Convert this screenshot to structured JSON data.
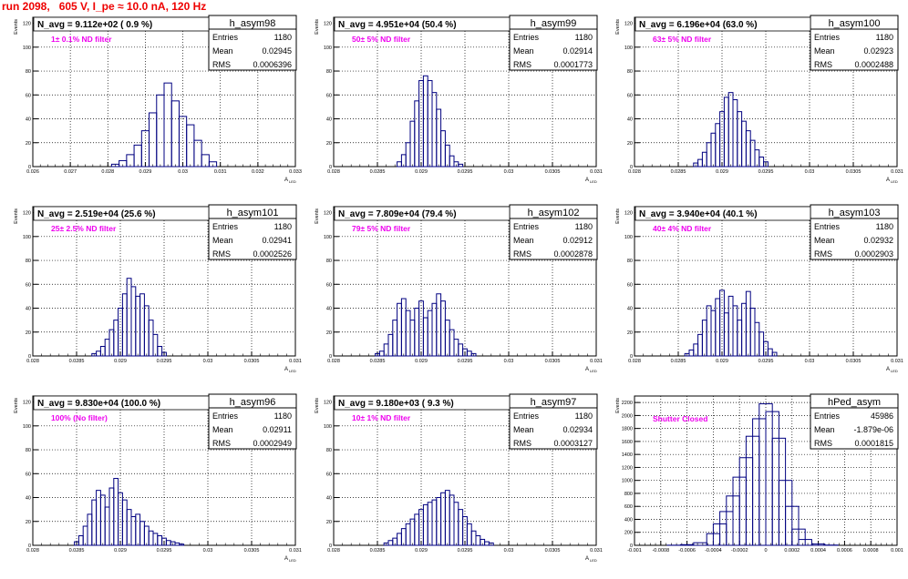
{
  "title": "run 2098,   605 V, I_pe ≈ 10.0 nA, 120 Hz",
  "colors": {
    "title": "#ee0000",
    "histogram": "#000080",
    "annotation": "#ee00ee",
    "grid": "#000000"
  },
  "stats_labels": {
    "entries": "Entries",
    "mean": "Mean",
    "rms": "RMS"
  },
  "panels": [
    {
      "name": "h_asym98",
      "header": "N_avg = 9.112e+02 ( 0.9 %)",
      "annotation": "1± 0.1% ND filter",
      "stats": {
        "entries": "1180",
        "mean": "0.02945",
        "rms": "0.0006396"
      },
      "ylabel": "Events",
      "xlabel": "A",
      "xlabel_sub": "LED",
      "xticks": [
        "0.026",
        "0.027",
        "0.028",
        "0.029",
        "0.03",
        "0.031",
        "0.032",
        "0.033"
      ],
      "yticks": [
        "0",
        "20",
        "40",
        "60",
        "80",
        "100",
        "120"
      ]
    },
    {
      "name": "h_asym99",
      "header": "N_avg = 4.951e+04 (50.4 %)",
      "annotation": "50± 5% ND filter",
      "stats": {
        "entries": "1180",
        "mean": "0.02914",
        "rms": "0.0001773"
      },
      "ylabel": "Events",
      "xlabel": "A",
      "xlabel_sub": "LED",
      "xticks": [
        "0.028",
        "0.0285",
        "0.029",
        "0.0295",
        "0.03",
        "0.0305",
        "0.031"
      ],
      "yticks": [
        "0",
        "20",
        "40",
        "60",
        "80",
        "100",
        "120"
      ]
    },
    {
      "name": "h_asym100",
      "header": "N_avg = 6.196e+04 (63.0 %)",
      "annotation": "63± 5% ND filter",
      "stats": {
        "entries": "1180",
        "mean": "0.02923",
        "rms": "0.0002488"
      },
      "ylabel": "Events",
      "xlabel": "A",
      "xlabel_sub": "LED",
      "xticks": [
        "0.028",
        "0.0285",
        "0.029",
        "0.0295",
        "0.03",
        "0.0305",
        "0.031"
      ],
      "yticks": [
        "0",
        "20",
        "40",
        "60",
        "80",
        "100",
        "120"
      ]
    },
    {
      "name": "h_asym101",
      "header": "N_avg = 2.519e+04 (25.6 %)",
      "annotation": "25± 2.5% ND filter",
      "stats": {
        "entries": "1180",
        "mean": "0.02941",
        "rms": "0.0002526"
      },
      "ylabel": "Events",
      "xlabel": "A",
      "xlabel_sub": "LED",
      "xticks": [
        "0.028",
        "0.0285",
        "0.029",
        "0.0295",
        "0.03",
        "0.0305",
        "0.031"
      ],
      "yticks": [
        "0",
        "20",
        "40",
        "60",
        "80",
        "100",
        "120"
      ]
    },
    {
      "name": "h_asym102",
      "header": "N_avg = 7.809e+04 (79.4 %)",
      "annotation": "79± 5% ND filter",
      "stats": {
        "entries": "1180",
        "mean": "0.02912",
        "rms": "0.0002878"
      },
      "ylabel": "Events",
      "xlabel": "A",
      "xlabel_sub": "LED",
      "xticks": [
        "0.028",
        "0.0285",
        "0.029",
        "0.0295",
        "0.03",
        "0.0305",
        "0.031"
      ],
      "yticks": [
        "0",
        "20",
        "40",
        "60",
        "80",
        "100",
        "120"
      ]
    },
    {
      "name": "h_asym103",
      "header": "N_avg = 3.940e+04 (40.1 %)",
      "annotation": "40± 4% ND filter",
      "stats": {
        "entries": "1180",
        "mean": "0.02932",
        "rms": "0.0002903"
      },
      "ylabel": "Events",
      "xlabel": "A",
      "xlabel_sub": "LED",
      "xticks": [
        "0.028",
        "0.0285",
        "0.029",
        "0.0295",
        "0.03",
        "0.0305",
        "0.031"
      ],
      "yticks": [
        "0",
        "20",
        "40",
        "60",
        "80",
        "100",
        "120"
      ]
    },
    {
      "name": "h_asym96",
      "header": "N_avg = 9.830e+04 (100.0 %)",
      "annotation": "100% (No filter)",
      "stats": {
        "entries": "1180",
        "mean": "0.02911",
        "rms": "0.0002949"
      },
      "ylabel": "Events",
      "xlabel": "A",
      "xlabel_sub": "LED",
      "xticks": [
        "0.028",
        "0.0285",
        "0.029",
        "0.0295",
        "0.03",
        "0.0305",
        "0.031"
      ],
      "yticks": [
        "0",
        "20",
        "40",
        "60",
        "80",
        "100",
        "120"
      ]
    },
    {
      "name": "h_asym97",
      "header": "N_avg = 9.180e+03 ( 9.3 %)",
      "annotation": "10± 1% ND filter",
      "stats": {
        "entries": "1180",
        "mean": "0.02934",
        "rms": "0.0003127"
      },
      "ylabel": "Events",
      "xlabel": "A",
      "xlabel_sub": "LED",
      "xticks": [
        "0.028",
        "0.0285",
        "0.029",
        "0.0295",
        "0.03",
        "0.0305",
        "0.031"
      ],
      "yticks": [
        "0",
        "20",
        "40",
        "60",
        "80",
        "100",
        "120"
      ]
    },
    {
      "name": "hPed_asym",
      "header": "",
      "annotation": "Shutter Closed",
      "stats": {
        "entries": "45986",
        "mean": "-1.879e-06",
        "rms": "0.0001815"
      },
      "ylabel": "Events",
      "xlabel": "",
      "xlabel_sub": "",
      "xticks": [
        "-0.001",
        "-0.0008",
        "-0.0006",
        "-0.0004",
        "-0.0002",
        "0",
        "0.0002",
        "0.0004",
        "0.0006",
        "0.0008",
        "0.001"
      ],
      "yticks": [
        "0",
        "200",
        "400",
        "600",
        "800",
        "1000",
        "1200",
        "1400",
        "1600",
        "1800",
        "2000",
        "2200"
      ]
    }
  ],
  "chart_data": [
    {
      "type": "bar",
      "name": "h_asym98",
      "xlim": [
        0.026,
        0.033
      ],
      "ylim": [
        0,
        125
      ],
      "x": [
        0.0282,
        0.0284,
        0.0286,
        0.0288,
        0.029,
        0.0292,
        0.0294,
        0.0296,
        0.0298,
        0.03,
        0.0302,
        0.0304,
        0.0306,
        0.0308
      ],
      "values": [
        2,
        5,
        10,
        18,
        30,
        45,
        60,
        70,
        55,
        42,
        35,
        22,
        10,
        4
      ]
    },
    {
      "type": "bar",
      "name": "h_asym99",
      "xlim": [
        0.028,
        0.031
      ],
      "ylim": [
        0,
        125
      ],
      "x": [
        0.02875,
        0.0288,
        0.02885,
        0.0289,
        0.02895,
        0.029,
        0.02905,
        0.0291,
        0.02915,
        0.0292,
        0.02925,
        0.0293,
        0.02935,
        0.0294,
        0.02945
      ],
      "values": [
        4,
        10,
        20,
        38,
        55,
        72,
        76,
        72,
        62,
        48,
        30,
        18,
        9,
        4,
        2
      ]
    },
    {
      "type": "bar",
      "name": "h_asym100",
      "xlim": [
        0.028,
        0.031
      ],
      "ylim": [
        0,
        125
      ],
      "x": [
        0.0287,
        0.02875,
        0.0288,
        0.02885,
        0.0289,
        0.02895,
        0.029,
        0.02905,
        0.0291,
        0.02915,
        0.0292,
        0.02925,
        0.0293,
        0.02935,
        0.0294,
        0.02945,
        0.0295
      ],
      "values": [
        3,
        6,
        12,
        20,
        28,
        36,
        46,
        58,
        62,
        56,
        46,
        38,
        30,
        22,
        14,
        8,
        4
      ]
    },
    {
      "type": "bar",
      "name": "h_asym101",
      "xlim": [
        0.028,
        0.031
      ],
      "ylim": [
        0,
        125
      ],
      "x": [
        0.0287,
        0.02875,
        0.0288,
        0.02885,
        0.0289,
        0.02895,
        0.029,
        0.02905,
        0.0291,
        0.02915,
        0.0292,
        0.02925,
        0.0293,
        0.02935,
        0.0294,
        0.02945,
        0.0295
      ],
      "values": [
        2,
        4,
        8,
        14,
        22,
        30,
        40,
        52,
        65,
        58,
        50,
        52,
        42,
        30,
        18,
        8,
        3
      ]
    },
    {
      "type": "bar",
      "name": "h_asym102",
      "xlim": [
        0.028,
        0.031
      ],
      "ylim": [
        0,
        125
      ],
      "x": [
        0.0285,
        0.02855,
        0.0286,
        0.02865,
        0.0287,
        0.02875,
        0.0288,
        0.02885,
        0.0289,
        0.02895,
        0.029,
        0.02905,
        0.0291,
        0.02915,
        0.0292,
        0.02925,
        0.0293,
        0.02935,
        0.0294,
        0.02945,
        0.0295,
        0.02955,
        0.0296
      ],
      "values": [
        2,
        4,
        10,
        18,
        30,
        44,
        48,
        38,
        30,
        40,
        46,
        32,
        38,
        44,
        52,
        46,
        30,
        22,
        14,
        10,
        6,
        4,
        2
      ]
    },
    {
      "type": "bar",
      "name": "h_asym103",
      "xlim": [
        0.028,
        0.031
      ],
      "ylim": [
        0,
        125
      ],
      "x": [
        0.0286,
        0.02865,
        0.0287,
        0.02875,
        0.0288,
        0.02885,
        0.0289,
        0.02895,
        0.029,
        0.02905,
        0.0291,
        0.02915,
        0.0292,
        0.02925,
        0.0293,
        0.02935,
        0.0294,
        0.02945,
        0.0295,
        0.02955,
        0.0296
      ],
      "values": [
        2,
        5,
        10,
        18,
        30,
        42,
        38,
        48,
        55,
        36,
        50,
        42,
        30,
        44,
        54,
        40,
        28,
        20,
        12,
        6,
        3
      ]
    },
    {
      "type": "bar",
      "name": "h_asym96",
      "xlim": [
        0.028,
        0.031
      ],
      "ylim": [
        0,
        125
      ],
      "x": [
        0.0285,
        0.02855,
        0.0286,
        0.02865,
        0.0287,
        0.02875,
        0.0288,
        0.02885,
        0.0289,
        0.02895,
        0.029,
        0.02905,
        0.0291,
        0.02915,
        0.0292,
        0.02925,
        0.0293,
        0.02935,
        0.0294,
        0.02945,
        0.0295,
        0.02955,
        0.0296,
        0.02965,
        0.0297
      ],
      "values": [
        3,
        8,
        16,
        26,
        38,
        46,
        42,
        32,
        48,
        56,
        44,
        38,
        30,
        24,
        26,
        20,
        16,
        12,
        10,
        8,
        6,
        4,
        3,
        2,
        1
      ]
    },
    {
      "type": "bar",
      "name": "h_asym97",
      "xlim": [
        0.028,
        0.031
      ],
      "ylim": [
        0,
        125
      ],
      "x": [
        0.0286,
        0.02865,
        0.0287,
        0.02875,
        0.0288,
        0.02885,
        0.0289,
        0.02895,
        0.029,
        0.02905,
        0.0291,
        0.02915,
        0.0292,
        0.02925,
        0.0293,
        0.02935,
        0.0294,
        0.02945,
        0.0295,
        0.02955,
        0.0296,
        0.02965,
        0.0297,
        0.02975,
        0.0298
      ],
      "values": [
        2,
        4,
        6,
        10,
        14,
        18,
        22,
        26,
        30,
        34,
        36,
        38,
        40,
        44,
        46,
        42,
        36,
        30,
        24,
        18,
        12,
        8,
        5,
        3,
        2
      ]
    },
    {
      "type": "bar",
      "name": "hPed_asym",
      "xlim": [
        -0.001,
        0.001
      ],
      "ylim": [
        0,
        2300
      ],
      "x": [
        -0.0007,
        -0.0006,
        -0.0005,
        -0.0004,
        -0.00035,
        -0.0003,
        -0.00025,
        -0.0002,
        -0.00015,
        -0.0001,
        -5e-05,
        0,
        5e-05,
        0.0001,
        0.00015,
        0.0002,
        0.00025,
        0.0003,
        0.0004,
        0.0005
      ],
      "values": [
        2,
        10,
        40,
        180,
        330,
        520,
        760,
        1050,
        1350,
        1680,
        1950,
        2180,
        2060,
        1650,
        1000,
        600,
        250,
        90,
        20,
        4
      ]
    }
  ]
}
